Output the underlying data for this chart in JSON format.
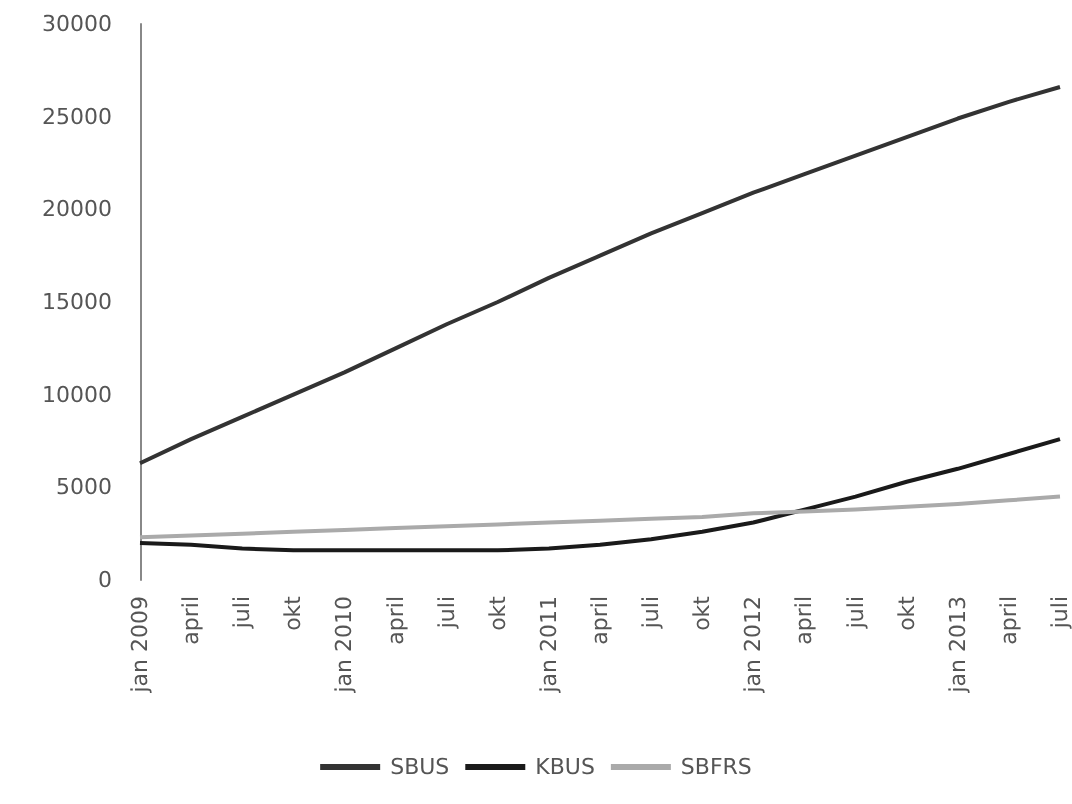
{
  "chart_data": {
    "type": "line",
    "categories": [
      "jan 2009",
      "april",
      "juli",
      "okt",
      "jan 2010",
      "april",
      "juli",
      "okt",
      "jan 2011",
      "april",
      "juli",
      "okt",
      "jan 2012",
      "april",
      "juli",
      "okt",
      "jan 2013",
      "april",
      "juli"
    ],
    "series": [
      {
        "name": "SBUS",
        "color": "#333333",
        "values": [
          6300,
          7600,
          8800,
          10000,
          11200,
          12500,
          13800,
          15000,
          16300,
          17500,
          18700,
          19800,
          20900,
          21900,
          22900,
          23900,
          24900,
          25800,
          26600
        ]
      },
      {
        "name": "KBUS",
        "color": "#1a1a1a",
        "values": [
          2000,
          1900,
          1700,
          1600,
          1600,
          1600,
          1600,
          1600,
          1700,
          1900,
          2200,
          2600,
          3100,
          3800,
          4500,
          5300,
          6000,
          6800,
          7600
        ]
      },
      {
        "name": "SBFRS",
        "color": "#aaaaaa",
        "values": [
          2300,
          2400,
          2500,
          2600,
          2700,
          2800,
          2900,
          3000,
          3100,
          3200,
          3300,
          3400,
          3600,
          3700,
          3800,
          3950,
          4100,
          4300,
          4500
        ]
      }
    ],
    "ylim": [
      0,
      30000
    ],
    "yticks": [
      0,
      5000,
      10000,
      15000,
      20000,
      25000,
      30000
    ],
    "grid": false,
    "legend": "bottom",
    "marker": "none",
    "line_style": "solid"
  }
}
